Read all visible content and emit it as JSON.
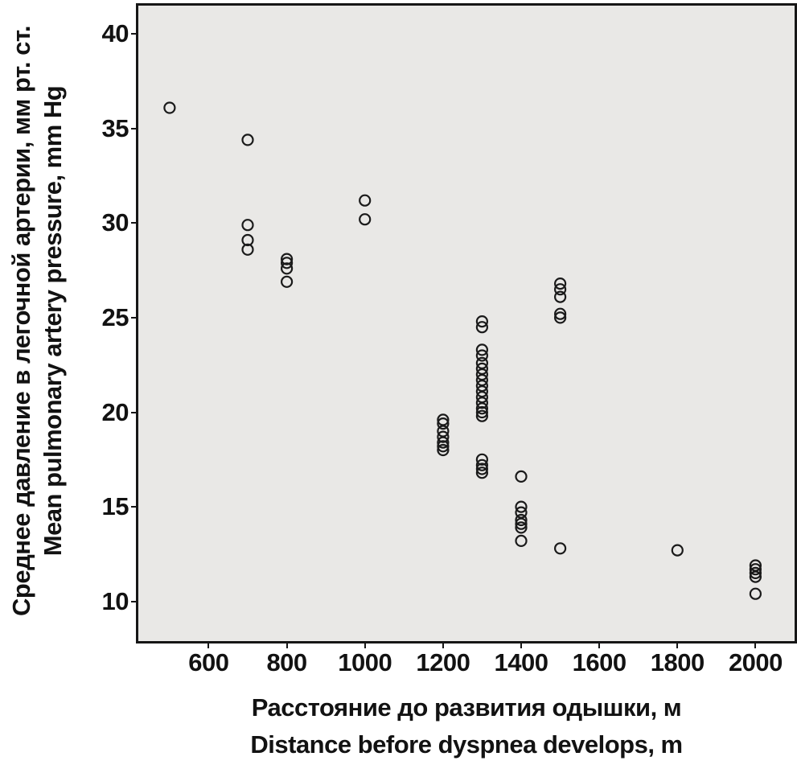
{
  "figure": {
    "background": "#ffffff",
    "plot_background": "#e9e8e6",
    "border_color": "#161616",
    "text_color": "#121212"
  },
  "chart_data": {
    "type": "scatter",
    "title": "",
    "xlabel_lines": [
      "Расстояние до развития одышки, м",
      "Distance before dyspnea develops, m"
    ],
    "ylabel_lines": [
      "Среднее давление в легочной артерии, мм рт. ст.",
      "Mean pulmonary artery pressure, mm Hg"
    ],
    "xlim": [
      420,
      2100
    ],
    "ylim": [
      7.9,
      41.5
    ],
    "x_ticks": [
      600,
      800,
      1000,
      1200,
      1400,
      1600,
      1800,
      2000
    ],
    "y_ticks": [
      10,
      15,
      20,
      25,
      30,
      35,
      40
    ],
    "grid": false,
    "legend": "none",
    "marker": {
      "shape": "open-circle",
      "radius": 6.5,
      "stroke": "#1a1a1a",
      "stroke_width": 2.2,
      "fill": "none"
    },
    "points": [
      [
        500,
        36.1
      ],
      [
        700,
        34.4
      ],
      [
        700,
        29.9
      ],
      [
        700,
        29.1
      ],
      [
        700,
        28.6
      ],
      [
        800,
        28.1
      ],
      [
        800,
        27.9
      ],
      [
        800,
        27.6
      ],
      [
        800,
        26.9
      ],
      [
        1000,
        31.2
      ],
      [
        1000,
        30.2
      ],
      [
        1200,
        19.6
      ],
      [
        1200,
        19.4
      ],
      [
        1200,
        19.0
      ],
      [
        1200,
        18.7
      ],
      [
        1200,
        18.4
      ],
      [
        1200,
        18.2
      ],
      [
        1200,
        18.0
      ],
      [
        1300,
        24.8
      ],
      [
        1300,
        24.5
      ],
      [
        1300,
        23.3
      ],
      [
        1300,
        23.0
      ],
      [
        1300,
        22.6
      ],
      [
        1300,
        22.3
      ],
      [
        1300,
        22.0
      ],
      [
        1300,
        21.7
      ],
      [
        1300,
        21.4
      ],
      [
        1300,
        21.1
      ],
      [
        1300,
        20.8
      ],
      [
        1300,
        20.5
      ],
      [
        1300,
        20.2
      ],
      [
        1300,
        20.0
      ],
      [
        1300,
        19.8
      ],
      [
        1300,
        17.5
      ],
      [
        1300,
        17.2
      ],
      [
        1300,
        17.0
      ],
      [
        1300,
        16.8
      ],
      [
        1400,
        16.6
      ],
      [
        1400,
        15.0
      ],
      [
        1400,
        14.7
      ],
      [
        1400,
        14.3
      ],
      [
        1400,
        14.1
      ],
      [
        1400,
        13.9
      ],
      [
        1400,
        13.2
      ],
      [
        1500,
        26.8
      ],
      [
        1500,
        26.5
      ],
      [
        1500,
        26.1
      ],
      [
        1500,
        25.2
      ],
      [
        1500,
        25.0
      ],
      [
        1500,
        12.8
      ],
      [
        1800,
        12.7
      ],
      [
        2000,
        11.9
      ],
      [
        2000,
        11.7
      ],
      [
        2000,
        11.5
      ],
      [
        2000,
        11.3
      ],
      [
        2000,
        10.4
      ]
    ]
  }
}
